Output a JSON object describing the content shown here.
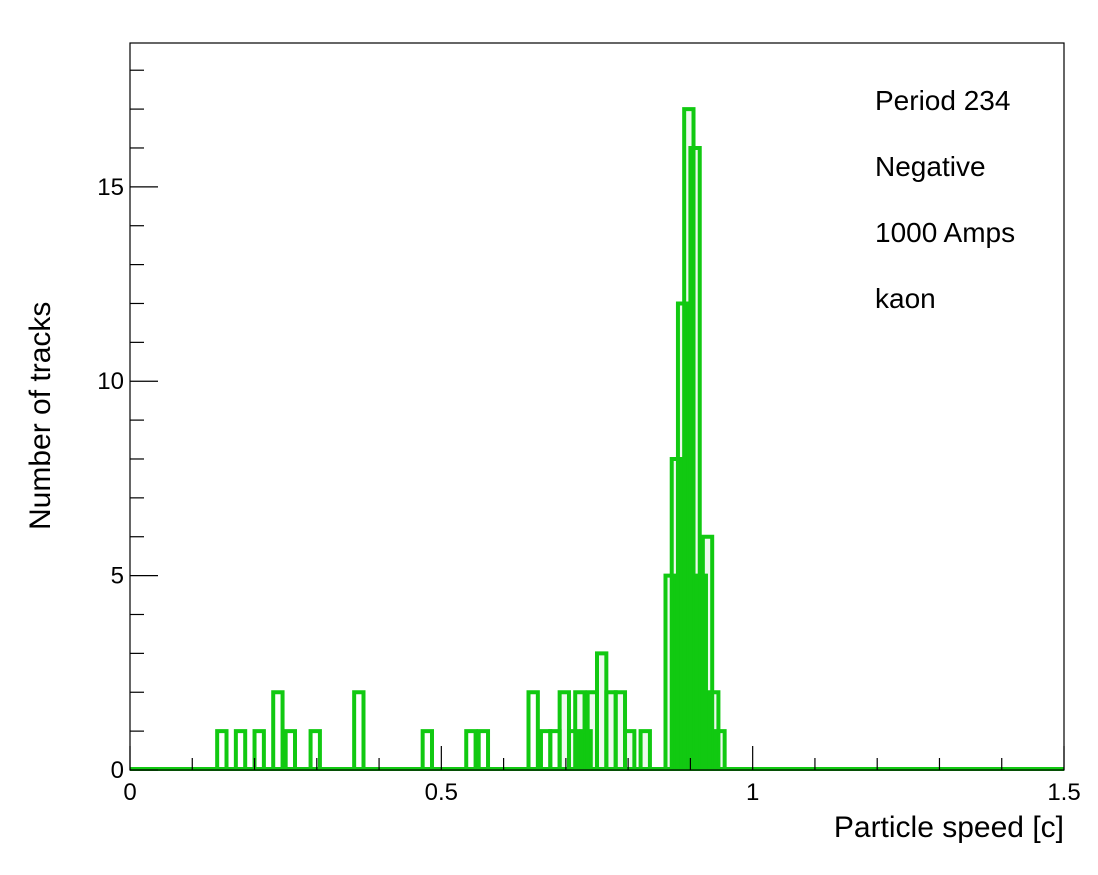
{
  "chart_data": {
    "type": "bar",
    "title": "",
    "xlabel": "Particle speed [c]",
    "ylabel": "Number of tracks",
    "xlim": [
      0,
      1.5
    ],
    "ylim": [
      0,
      18.7
    ],
    "bin_width": 0.015,
    "x_ticks": [
      {
        "value": 0,
        "label": "0"
      },
      {
        "value": 0.5,
        "label": "0.5"
      },
      {
        "value": 1,
        "label": "1"
      },
      {
        "value": 1.5,
        "label": "1.5"
      }
    ],
    "y_ticks": [
      {
        "value": 0,
        "label": "0"
      },
      {
        "value": 5,
        "label": "5"
      },
      {
        "value": 10,
        "label": "10"
      },
      {
        "value": 15,
        "label": "15"
      }
    ],
    "series": [
      {
        "color": "#11c911",
        "fill_color": "#eef9ee",
        "bins": [
          {
            "x": 0.14,
            "y": 1
          },
          {
            "x": 0.17,
            "y": 1
          },
          {
            "x": 0.2,
            "y": 1
          },
          {
            "x": 0.23,
            "y": 2
          },
          {
            "x": 0.25,
            "y": 1
          },
          {
            "x": 0.29,
            "y": 1
          },
          {
            "x": 0.36,
            "y": 2
          },
          {
            "x": 0.47,
            "y": 1
          },
          {
            "x": 0.54,
            "y": 1
          },
          {
            "x": 0.56,
            "y": 1
          },
          {
            "x": 0.64,
            "y": 2
          },
          {
            "x": 0.66,
            "y": 1
          },
          {
            "x": 0.675,
            "y": 1
          },
          {
            "x": 0.69,
            "y": 2
          },
          {
            "x": 0.705,
            "y": 1
          },
          {
            "x": 0.715,
            "y": 2
          },
          {
            "x": 0.725,
            "y": 1
          },
          {
            "x": 0.735,
            "y": 2
          },
          {
            "x": 0.75,
            "y": 3
          },
          {
            "x": 0.765,
            "y": 2
          },
          {
            "x": 0.78,
            "y": 2
          },
          {
            "x": 0.795,
            "y": 1
          },
          {
            "x": 0.82,
            "y": 1
          },
          {
            "x": 0.86,
            "y": 5
          },
          {
            "x": 0.87,
            "y": 8
          },
          {
            "x": 0.88,
            "y": 12
          },
          {
            "x": 0.89,
            "y": 17
          },
          {
            "x": 0.9,
            "y": 16
          },
          {
            "x": 0.91,
            "y": 5
          },
          {
            "x": 0.92,
            "y": 6
          },
          {
            "x": 0.93,
            "y": 2
          },
          {
            "x": 0.94,
            "y": 1
          }
        ]
      }
    ],
    "annotations": [
      "Period 234",
      "Negative",
      "1000 Amps",
      "kaon"
    ],
    "grid": false
  }
}
